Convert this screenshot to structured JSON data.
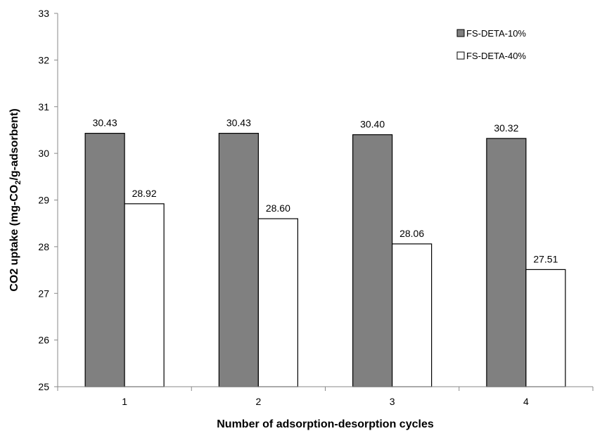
{
  "chart_data": {
    "type": "bar",
    "categories": [
      "1",
      "2",
      "3",
      "4"
    ],
    "series": [
      {
        "name": "FS-DETA-10%",
        "values": [
          30.43,
          30.43,
          30.4,
          30.32
        ],
        "color": "#808080"
      },
      {
        "name": "FS-DETA-40%",
        "values": [
          28.92,
          28.6,
          28.06,
          27.51
        ],
        "color": "#ffffff"
      }
    ],
    "data_labels": [
      [
        "30.43",
        "30.43",
        "30.40",
        "30.32"
      ],
      [
        "28.92",
        "28.60",
        "28.06",
        "27.51"
      ]
    ],
    "yticks": [
      "25",
      "26",
      "27",
      "28",
      "29",
      "30",
      "31",
      "32",
      "33"
    ],
    "ylim": [
      25,
      33
    ],
    "xlabel": "Number of adsorption-desorption cycles",
    "ylabel": {
      "before": "CO2 uptake (mg-CO",
      "sub": "2",
      "after": "/g-adsorbent)"
    },
    "legend_position": "top-right",
    "grid": false
  }
}
